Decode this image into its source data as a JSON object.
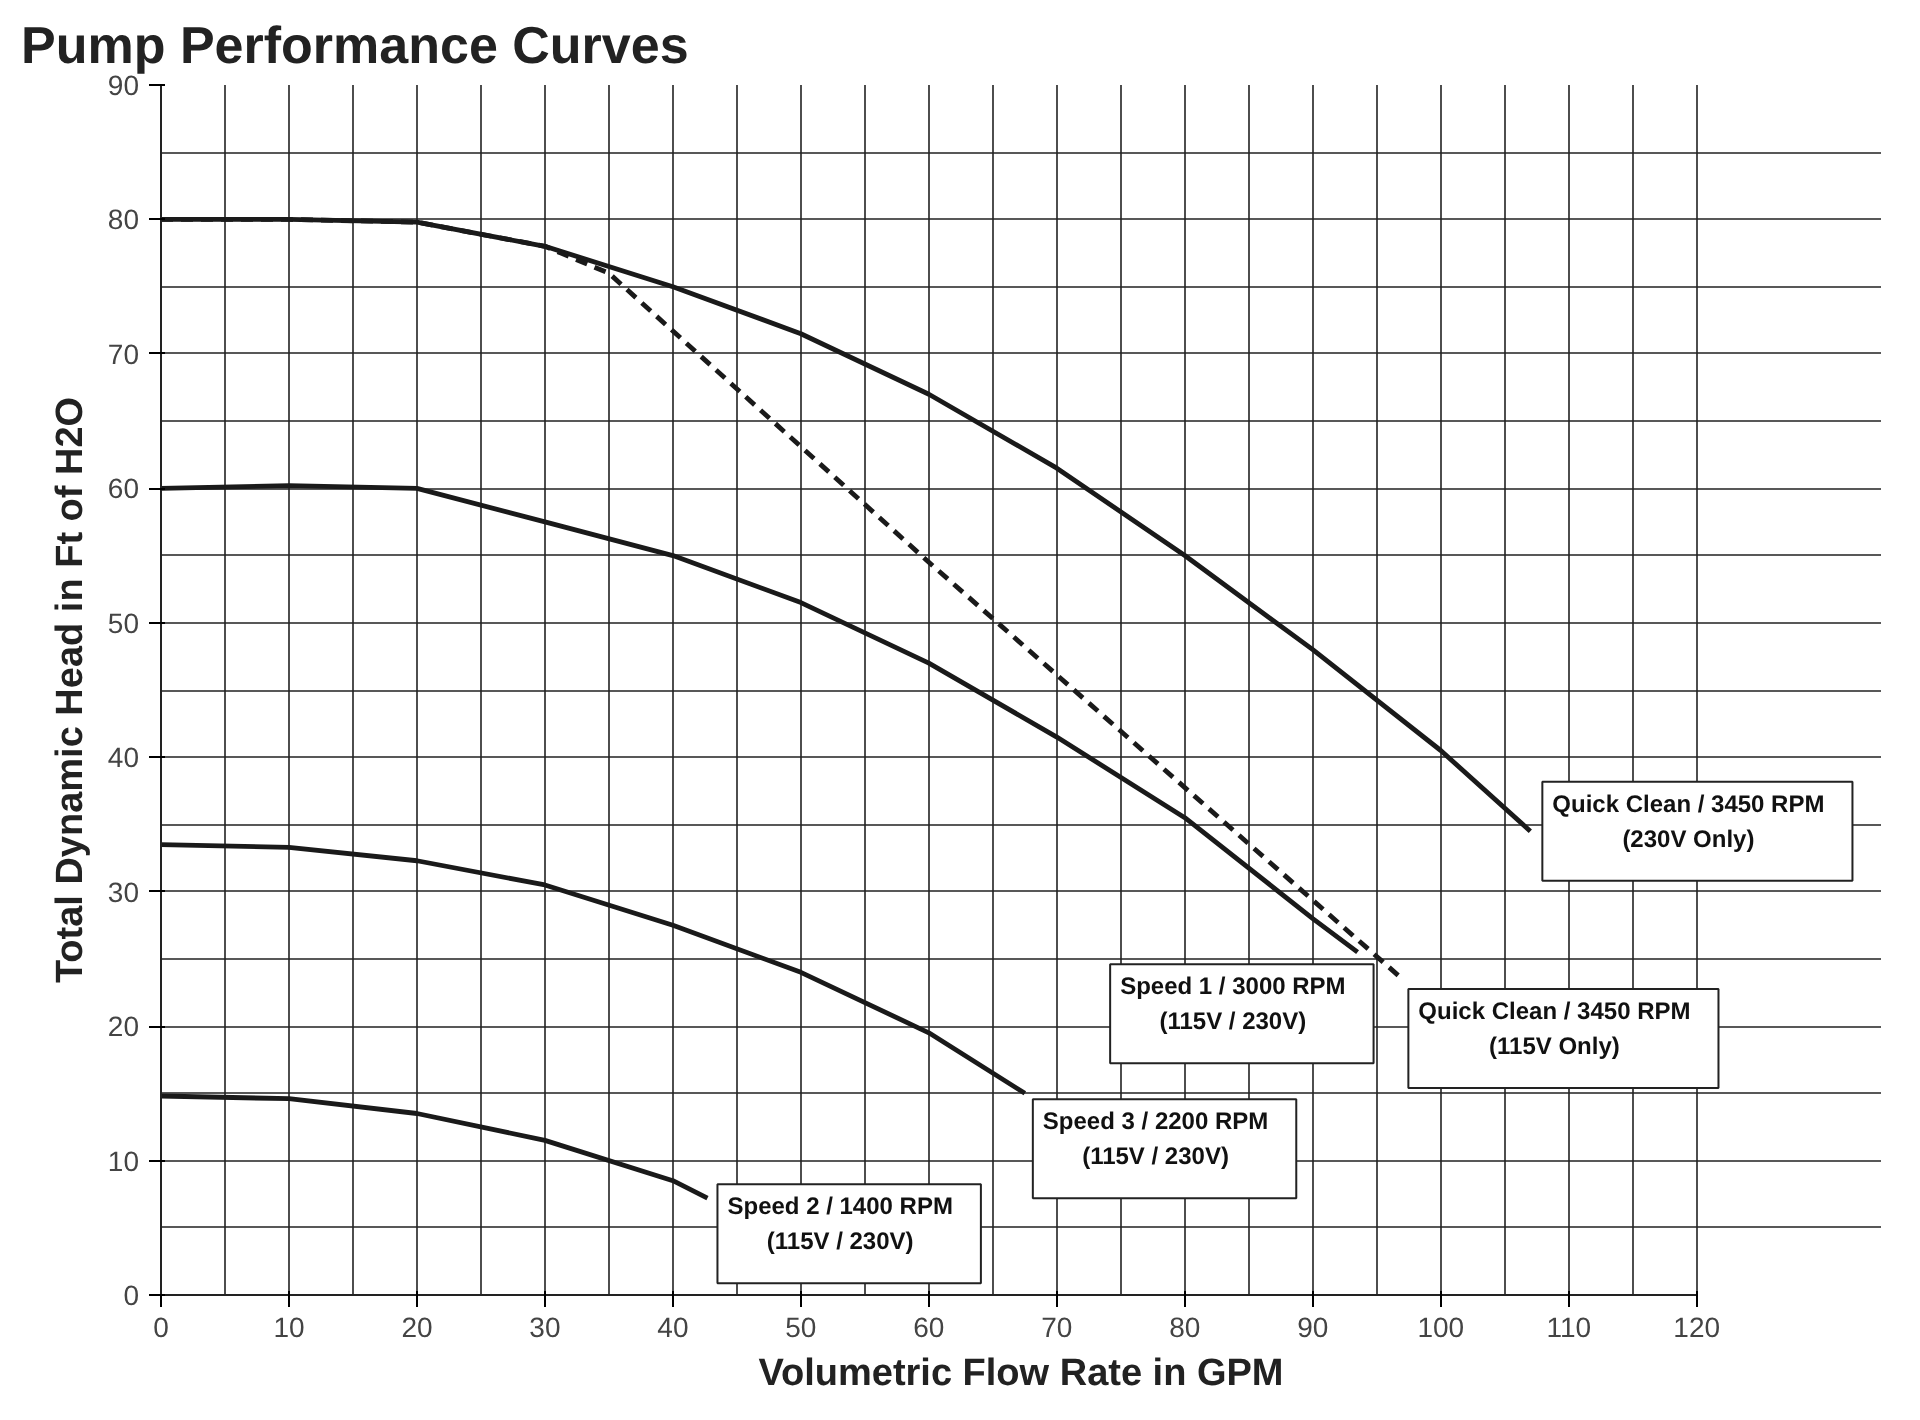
{
  "chart_data": {
    "type": "line",
    "title": "Pump Performance Curves",
    "xlabel": "Volumetric Flow Rate in GPM",
    "ylabel": "Total Dynamic Head in Ft of H2O",
    "xlim": [
      0,
      120
    ],
    "xticks": [
      0,
      10,
      20,
      30,
      40,
      50,
      60,
      70,
      80,
      90,
      100,
      110,
      120
    ],
    "ylim": [
      0,
      90
    ],
    "yticks": [
      0,
      10,
      20,
      30,
      40,
      50,
      60,
      70,
      80,
      90
    ],
    "grid": true,
    "marker": "none",
    "series": [
      {
        "name": "Quick Clean / 3450 RPM\n(230V Only)",
        "color": "#1a1a1a",
        "line_style": "solid",
        "x": [
          0,
          10,
          20,
          30,
          40,
          50,
          60,
          70,
          80,
          90,
          100,
          107
        ],
        "values": [
          80,
          80,
          79.8,
          78,
          75,
          71.5,
          67,
          61.5,
          55,
          48,
          40.5,
          34.5
        ]
      },
      {
        "name": "Quick Clean / 3450 RPM\n(115V Only)",
        "color": "#1a1a1a",
        "line_style": "dashed",
        "x": [
          0,
          10,
          20,
          30,
          35,
          60,
          97
        ],
        "values": [
          80,
          80,
          79.8,
          78,
          76,
          54.5,
          23.5
        ]
      },
      {
        "name": "Speed 1 / 3000 RPM\n(115V / 230V)",
        "color": "#1a1a1a",
        "line_style": "solid",
        "x": [
          0,
          10,
          20,
          30,
          40,
          50,
          60,
          70,
          80,
          90,
          93.5
        ],
        "values": [
          60,
          60.2,
          60,
          57.5,
          55,
          51.5,
          47,
          41.5,
          35.5,
          28,
          25.5
        ]
      },
      {
        "name": "Speed 3 / 2200 RPM\n(115V / 230V)",
        "color": "#1a1a1a",
        "line_style": "solid",
        "x": [
          0,
          10,
          20,
          30,
          40,
          50,
          60,
          67.5
        ],
        "values": [
          33.5,
          33.3,
          32.3,
          30.5,
          27.5,
          24,
          19.5,
          15
        ]
      },
      {
        "name": "Speed 2 / 1400 RPM\n(115V / 230V)",
        "color": "#1a1a1a",
        "line_style": "solid",
        "x": [
          0,
          10,
          20,
          30,
          40,
          42.7
        ],
        "values": [
          14.8,
          14.6,
          13.5,
          11.5,
          8.5,
          7.2
        ]
      }
    ]
  }
}
